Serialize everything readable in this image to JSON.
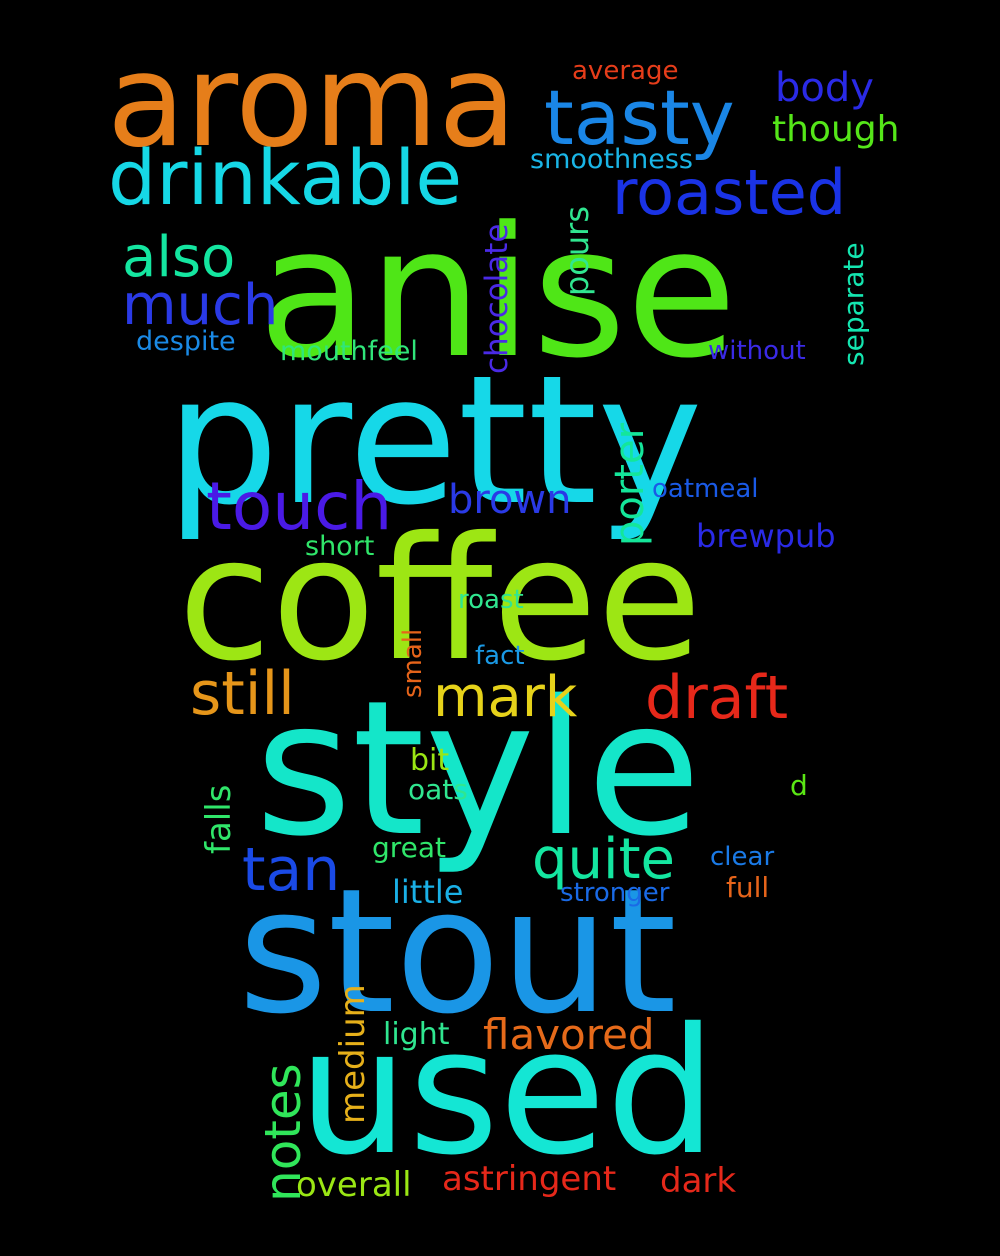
{
  "background": "#000000",
  "words": [
    {
      "text": "anise",
      "color": "#4fe617"
    },
    {
      "text": "pretty",
      "color": "#16d8e8"
    },
    {
      "text": "coffee",
      "color": "#9de614"
    },
    {
      "text": "style",
      "color": "#14e6c9"
    },
    {
      "text": "stout",
      "color": "#1a96e6"
    },
    {
      "text": "used",
      "color": "#14e6d4"
    },
    {
      "text": "aroma",
      "color": "#e67e1a"
    },
    {
      "text": "tasty",
      "color": "#1a86e6"
    },
    {
      "text": "drinkable",
      "color": "#16d8e6"
    },
    {
      "text": "roasted",
      "color": "#1a33e6"
    },
    {
      "text": "body",
      "color": "#2a2ae6"
    },
    {
      "text": "though",
      "color": "#55e619"
    },
    {
      "text": "average",
      "color": "#e63d1a"
    },
    {
      "text": "smoothness",
      "color": "#1ab5e6"
    },
    {
      "text": "also",
      "color": "#14e6a0"
    },
    {
      "text": "much",
      "color": "#2a3ae6"
    },
    {
      "text": "despite",
      "color": "#1a8ae6"
    },
    {
      "text": "mouthfeel",
      "color": "#30e67a"
    },
    {
      "text": "chocolate",
      "color": "#4a2ae6"
    },
    {
      "text": "pours",
      "color": "#30e690"
    },
    {
      "text": "separate",
      "color": "#14e6b0"
    },
    {
      "text": "without",
      "color": "#3a2ae6"
    },
    {
      "text": "touch",
      "color": "#4a1ae6"
    },
    {
      "text": "brown",
      "color": "#2a3ae6"
    },
    {
      "text": "porter",
      "color": "#14e69a"
    },
    {
      "text": "oatmeal",
      "color": "#1a5ae6"
    },
    {
      "text": "brewpub",
      "color": "#2a2ae6"
    },
    {
      "text": "short",
      "color": "#30e66a"
    },
    {
      "text": "roast",
      "color": "#30e690"
    },
    {
      "text": "small",
      "color": "#e6641a"
    },
    {
      "text": "fact",
      "color": "#1a9ae6"
    },
    {
      "text": "still",
      "color": "#e6961a"
    },
    {
      "text": "mark",
      "color": "#e6d21a"
    },
    {
      "text": "draft",
      "color": "#e6281a"
    },
    {
      "text": "bit",
      "color": "#9ae614"
    },
    {
      "text": "oats",
      "color": "#30e690"
    },
    {
      "text": "d",
      "color": "#5ae614"
    },
    {
      "text": "falls",
      "color": "#30e66a"
    },
    {
      "text": "tan",
      "color": "#1a4ae6"
    },
    {
      "text": "quite",
      "color": "#14e6a0"
    },
    {
      "text": "great",
      "color": "#30e66a"
    },
    {
      "text": "clear",
      "color": "#1a7ae6"
    },
    {
      "text": "little",
      "color": "#1ab0e6"
    },
    {
      "text": "stronger",
      "color": "#1a6ae6"
    },
    {
      "text": "full",
      "color": "#e6641a"
    },
    {
      "text": "medium",
      "color": "#e6b01a"
    },
    {
      "text": "light",
      "color": "#30e690"
    },
    {
      "text": "flavored",
      "color": "#e66a1a"
    },
    {
      "text": "notes",
      "color": "#30e65a"
    },
    {
      "text": "overall",
      "color": "#9ae614"
    },
    {
      "text": "astringent",
      "color": "#e6281a"
    },
    {
      "text": "dark",
      "color": "#e6281a"
    }
  ]
}
